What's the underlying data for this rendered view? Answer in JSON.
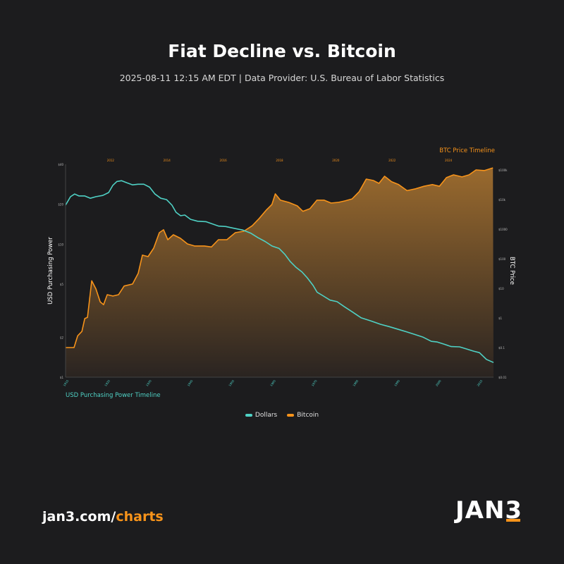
{
  "header": {
    "title": "Fiat Decline vs. Bitcoin",
    "subtitle": "2025-08-11 12:15 AM EDT  |  Data Provider: U.S. Bureau of Labor Statistics"
  },
  "colors": {
    "dollars": "#4fd1c5",
    "bitcoin": "#f7931a",
    "background": "#1c1c1e"
  },
  "chart_data": {
    "type": "line",
    "title": "Fiat Decline vs. Bitcoin",
    "grid": false,
    "legend_placement": "bottom-center",
    "left_axis": {
      "label": "USD Purchasing Power",
      "scale": "log",
      "ticks": [
        {
          "v": 1,
          "label": "$1"
        },
        {
          "v": 2,
          "label": "$2"
        },
        {
          "v": 5,
          "label": "$5"
        },
        {
          "v": 10,
          "label": "$10"
        },
        {
          "v": 20,
          "label": "$20"
        },
        {
          "v": 40,
          "label": "$40"
        }
      ],
      "range": [
        1,
        40
      ]
    },
    "bottom_axis": {
      "label": "USD Purchasing Power Timeline",
      "ticks": [
        "1915",
        "1925",
        "1935",
        "1945",
        "1955",
        "1965",
        "1975",
        "1985",
        "1995",
        "2005",
        "2015"
      ],
      "range": [
        1915,
        2018.4
      ]
    },
    "right_axis": {
      "label": "BTC Price",
      "scale": "log",
      "ticks": [
        {
          "v": 0.01,
          "label": "$0.01"
        },
        {
          "v": 0.1,
          "label": "$0.1"
        },
        {
          "v": 1,
          "label": "$1"
        },
        {
          "v": 10,
          "label": "$10"
        },
        {
          "v": 100,
          "label": "$100"
        },
        {
          "v": 1000,
          "label": "$1000"
        },
        {
          "v": 10000,
          "label": "$10k"
        },
        {
          "v": 100000,
          "label": "$100k"
        }
      ],
      "range": [
        0.01,
        155000
      ]
    },
    "top_axis": {
      "label": "BTC Price Timeline",
      "ticks": [
        "2012",
        "2014",
        "2016",
        "2018",
        "2020",
        "2022",
        "2024"
      ],
      "tick_years": [
        2012,
        2014,
        2016,
        2018,
        2020,
        2022,
        2024
      ],
      "range": [
        2010.4,
        2025.6
      ]
    },
    "series": [
      {
        "name": "Dollars",
        "x": [
          1915.0,
          1916.2,
          1917.2,
          1918.2,
          1919.6,
          1921.0,
          1922.3,
          1924.0,
          1925.4,
          1926.4,
          1927.4,
          1928.5,
          1929.8,
          1931.2,
          1932.5,
          1933.9,
          1935.3,
          1936.6,
          1938.0,
          1939.4,
          1940.7,
          1941.7,
          1942.8,
          1943.8,
          1945.2,
          1946.9,
          1948.9,
          1950.3,
          1952.0,
          1953.7,
          1955.7,
          1957.8,
          1959.8,
          1961.5,
          1963.2,
          1964.9,
          1966.6,
          1968.0,
          1969.3,
          1970.7,
          1972.1,
          1973.4,
          1974.8,
          1975.8,
          1977.2,
          1978.9,
          1980.6,
          1982.3,
          1984.3,
          1986.4,
          1988.8,
          1991.1,
          1993.2,
          1995.2,
          1997.3,
          1999.3,
          2001.4,
          2003.4,
          2004.8,
          2006.5,
          2008.2,
          2010.2,
          2011.9,
          2013.6,
          2015.0,
          2016.7,
          2018.4
        ],
        "values": [
          19.7,
          22.8,
          23.9,
          23.1,
          23.1,
          22.2,
          22.8,
          23.3,
          24.5,
          27.7,
          29.7,
          30.1,
          29.0,
          28.0,
          28.3,
          28.3,
          26.9,
          23.9,
          22.2,
          21.7,
          19.7,
          17.4,
          16.4,
          16.6,
          15.4,
          14.9,
          14.8,
          14.3,
          13.7,
          13.6,
          13.2,
          12.8,
          12.1,
          11.2,
          10.5,
          9.7,
          9.3,
          8.4,
          7.4,
          6.7,
          6.2,
          5.6,
          4.9,
          4.35,
          4.1,
          3.8,
          3.7,
          3.4,
          3.1,
          2.8,
          2.65,
          2.5,
          2.4,
          2.3,
          2.2,
          2.1,
          2.0,
          1.86,
          1.84,
          1.77,
          1.7,
          1.69,
          1.63,
          1.57,
          1.53,
          1.36,
          1.29
        ]
      },
      {
        "name": "Bitcoin",
        "x": [
          2010.4,
          2010.7,
          2010.83,
          2010.98,
          2011.08,
          2011.18,
          2011.33,
          2011.48,
          2011.63,
          2011.75,
          2011.88,
          2012.08,
          2012.28,
          2012.48,
          2012.78,
          2012.98,
          2013.13,
          2013.33,
          2013.53,
          2013.73,
          2013.88,
          2014.03,
          2014.23,
          2014.48,
          2014.73,
          2014.98,
          2015.33,
          2015.58,
          2015.83,
          2016.13,
          2016.43,
          2016.73,
          2017.03,
          2017.28,
          2017.53,
          2017.73,
          2017.85,
          2018.03,
          2018.33,
          2018.63,
          2018.83,
          2019.08,
          2019.33,
          2019.58,
          2019.83,
          2020.08,
          2020.33,
          2020.58,
          2020.83,
          2021.08,
          2021.33,
          2021.53,
          2021.73,
          2021.98,
          2022.23,
          2022.53,
          2022.83,
          2023.13,
          2023.43,
          2023.68,
          2023.93,
          2024.18,
          2024.48,
          2024.73,
          2024.98,
          2025.28,
          2025.58
        ],
        "values": [
          0.1,
          0.1,
          0.25,
          0.35,
          0.95,
          1.05,
          18,
          9.5,
          3.5,
          2.8,
          6.1,
          5.5,
          6.1,
          12,
          14,
          32,
          132,
          118,
          228,
          760,
          950,
          440,
          645,
          490,
          316,
          270,
          270,
          250,
          440,
          440,
          760,
          850,
          1300,
          2300,
          4400,
          6800,
          15500,
          9500,
          8000,
          6100,
          4000,
          4900,
          9500,
          9500,
          7600,
          8000,
          9000,
          10500,
          18500,
          49000,
          44000,
          35000,
          61000,
          40000,
          32000,
          20000,
          23000,
          28000,
          32000,
          28000,
          55000,
          68000,
          58000,
          68000,
          100000,
          95000,
          117000
        ]
      }
    ]
  },
  "legend": [
    {
      "label": "Dollars"
    },
    {
      "label": "Bitcoin"
    }
  ],
  "footer": {
    "url_prefix": "jan3.com/",
    "url_suffix": "charts",
    "logo": "JAN3"
  }
}
